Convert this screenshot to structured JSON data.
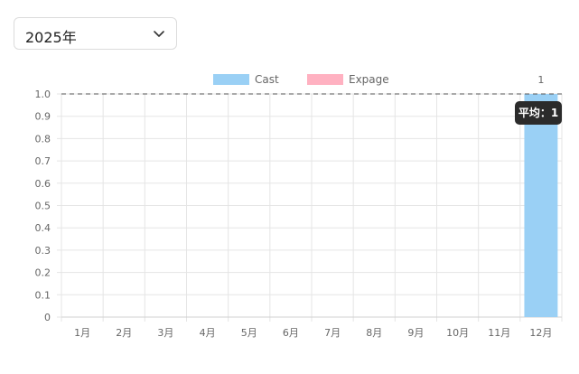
{
  "year_select": {
    "value": "2025年",
    "icon": "chevron-down-icon"
  },
  "chart_data": {
    "type": "bar",
    "categories": [
      "1月",
      "2月",
      "3月",
      "4月",
      "5月",
      "6月",
      "7月",
      "8月",
      "9月",
      "10月",
      "11月",
      "12月"
    ],
    "series": [
      {
        "name": "Cast",
        "color": "#9ad0f5",
        "values": [
          0,
          0,
          0,
          0,
          0,
          0,
          0,
          0,
          0,
          0,
          0,
          1
        ]
      },
      {
        "name": "Expage",
        "color": "#ffb1c1",
        "values": [
          0,
          0,
          0,
          0,
          0,
          0,
          0,
          0,
          0,
          0,
          0,
          0
        ]
      }
    ],
    "ylim": [
      0,
      1.0
    ],
    "yticks": [
      "0",
      "0.1",
      "0.2",
      "0.3",
      "0.4",
      "0.5",
      "0.6",
      "0.7",
      "0.8",
      "0.9",
      "1.0"
    ],
    "data_labels": [
      "",
      "",
      "",
      "",
      "",
      "",
      "",
      "",
      "",
      "",
      "",
      "1"
    ],
    "average": {
      "value": 1,
      "label": "平均：1",
      "line_style": "dashed"
    },
    "legend_position": "top-center",
    "grid": true
  }
}
